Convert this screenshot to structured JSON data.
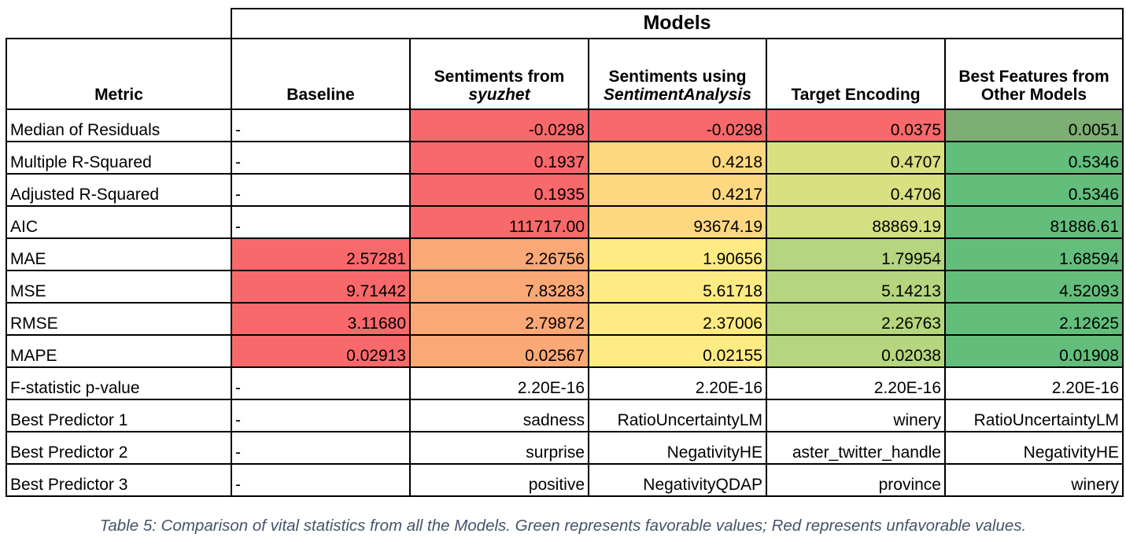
{
  "table": {
    "group_header": "Models",
    "metric_header": "Metric",
    "columns": [
      {
        "line1": "Baseline",
        "line2": "",
        "line2_italic": false
      },
      {
        "line1": "Sentiments from",
        "line2": "syuzhet",
        "line2_italic": true
      },
      {
        "line1": "Sentiments using",
        "line2": "SentimentAnalysis",
        "line2_italic": true
      },
      {
        "line1": "Target Encoding",
        "line2": "",
        "line2_italic": false
      },
      {
        "line1": "Best Features from",
        "line2": "Other Models",
        "line2_italic": false
      }
    ],
    "rows": [
      {
        "metric": "Median of Residuals",
        "cells": [
          {
            "v": "-",
            "bg": ""
          },
          {
            "v": "-0.0298",
            "bg": "#f8696b"
          },
          {
            "v": "-0.0298",
            "bg": "#f8696b"
          },
          {
            "v": "0.0375",
            "bg": "#f8696b"
          },
          {
            "v": "0.0051",
            "bg": "#7dae73"
          }
        ]
      },
      {
        "metric": "Multiple R-Squared",
        "cells": [
          {
            "v": "-",
            "bg": ""
          },
          {
            "v": "0.1937",
            "bg": "#f8696b"
          },
          {
            "v": "0.4218",
            "bg": "#fed880"
          },
          {
            "v": "0.4707",
            "bg": "#d9e082"
          },
          {
            "v": "0.5346",
            "bg": "#63be7b"
          }
        ]
      },
      {
        "metric": "Adjusted R-Squared",
        "cells": [
          {
            "v": "-",
            "bg": ""
          },
          {
            "v": "0.1935",
            "bg": "#f8696b"
          },
          {
            "v": "0.4217",
            "bg": "#fed880"
          },
          {
            "v": "0.4706",
            "bg": "#d9e082"
          },
          {
            "v": "0.5346",
            "bg": "#63be7b"
          }
        ]
      },
      {
        "metric": "AIC",
        "cells": [
          {
            "v": "-",
            "bg": ""
          },
          {
            "v": "111717.00",
            "bg": "#f8696b"
          },
          {
            "v": "93674.19",
            "bg": "#fed880"
          },
          {
            "v": "88869.19",
            "bg": "#d4df82"
          },
          {
            "v": "81886.61",
            "bg": "#63be7b"
          }
        ]
      },
      {
        "metric": "MAE",
        "cells": [
          {
            "v": "2.57281",
            "bg": "#f8696b"
          },
          {
            "v": "2.26756",
            "bg": "#fba877"
          },
          {
            "v": "1.90656",
            "bg": "#ffeb84"
          },
          {
            "v": "1.79954",
            "bg": "#b5d57e"
          },
          {
            "v": "1.68594",
            "bg": "#63be7b"
          }
        ]
      },
      {
        "metric": "MSE",
        "cells": [
          {
            "v": "9.71442",
            "bg": "#f8696b"
          },
          {
            "v": "7.83283",
            "bg": "#fba877"
          },
          {
            "v": "5.61718",
            "bg": "#ffeb84"
          },
          {
            "v": "5.14213",
            "bg": "#b5d57e"
          },
          {
            "v": "4.52093",
            "bg": "#63be7b"
          }
        ]
      },
      {
        "metric": "RMSE",
        "cells": [
          {
            "v": "3.11680",
            "bg": "#f8696b"
          },
          {
            "v": "2.79872",
            "bg": "#fba877"
          },
          {
            "v": "2.37006",
            "bg": "#ffeb84"
          },
          {
            "v": "2.26763",
            "bg": "#b5d57e"
          },
          {
            "v": "2.12625",
            "bg": "#63be7b"
          }
        ]
      },
      {
        "metric": "MAPE",
        "cells": [
          {
            "v": "0.02913",
            "bg": "#f8696b"
          },
          {
            "v": "0.02567",
            "bg": "#fba877"
          },
          {
            "v": "0.02155",
            "bg": "#ffeb84"
          },
          {
            "v": "0.02038",
            "bg": "#b5d57e"
          },
          {
            "v": "0.01908",
            "bg": "#63be7b"
          }
        ]
      },
      {
        "metric": "F-statistic p-value",
        "cells": [
          {
            "v": "-",
            "bg": ""
          },
          {
            "v": "2.20E-16",
            "bg": ""
          },
          {
            "v": "2.20E-16",
            "bg": ""
          },
          {
            "v": "2.20E-16",
            "bg": ""
          },
          {
            "v": "2.20E-16",
            "bg": ""
          }
        ]
      },
      {
        "metric": "Best Predictor 1",
        "cells": [
          {
            "v": "-",
            "bg": ""
          },
          {
            "v": "sadness",
            "bg": ""
          },
          {
            "v": "RatioUncertaintyLM",
            "bg": ""
          },
          {
            "v": "winery",
            "bg": ""
          },
          {
            "v": "RatioUncertaintyLM",
            "bg": ""
          }
        ]
      },
      {
        "metric": "Best Predictor 2",
        "cells": [
          {
            "v": "-",
            "bg": ""
          },
          {
            "v": "surprise",
            "bg": ""
          },
          {
            "v": "NegativityHE",
            "bg": ""
          },
          {
            "v": "aster_twitter_handle",
            "bg": ""
          },
          {
            "v": "NegativityHE",
            "bg": ""
          }
        ]
      },
      {
        "metric": "Best Predictor 3",
        "cells": [
          {
            "v": "-",
            "bg": ""
          },
          {
            "v": "positive",
            "bg": ""
          },
          {
            "v": "NegativityQDAP",
            "bg": ""
          },
          {
            "v": "province",
            "bg": ""
          },
          {
            "v": "winery",
            "bg": ""
          }
        ]
      }
    ]
  },
  "caption": "Table 5: Comparison of vital statistics from all the Models. Green represents favorable values; Red represents unfavorable values."
}
